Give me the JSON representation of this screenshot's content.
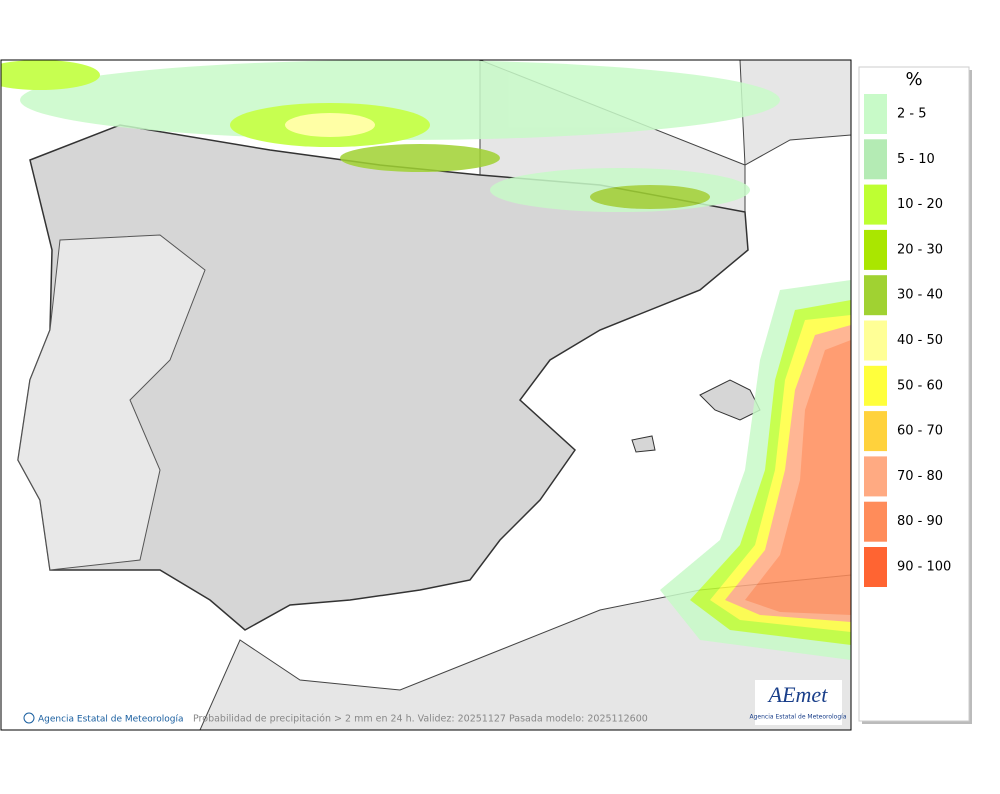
{
  "map": {
    "credit": "Agencia Estatal de Meteorología",
    "caption": "Probabilidad de precipitación > 2 mm en 24 h. Validez: 20251127 Pasada modelo: 2025112600",
    "logo": {
      "text": "AEmet",
      "subtitle": "Agencia Estatal de Meteorología"
    }
  },
  "legend": {
    "title": "%",
    "items": [
      {
        "label": "2 - 5",
        "color": "#c8fac8"
      },
      {
        "label": "5 - 10",
        "color": "#b4ebb4"
      },
      {
        "label": "10 - 20",
        "color": "#beff32"
      },
      {
        "label": "20 - 30",
        "color": "#aae600"
      },
      {
        "label": "30 - 40",
        "color": "#a0d232"
      },
      {
        "label": "40 - 50",
        "color": "#ffff96"
      },
      {
        "label": "50 - 60",
        "color": "#ffff3c"
      },
      {
        "label": "60 - 70",
        "color": "#ffd23c"
      },
      {
        "label": "70 - 80",
        "color": "#ffaa82"
      },
      {
        "label": "80 - 90",
        "color": "#ff8c5a"
      },
      {
        "label": "90 - 100",
        "color": "#ff6432"
      }
    ]
  }
}
